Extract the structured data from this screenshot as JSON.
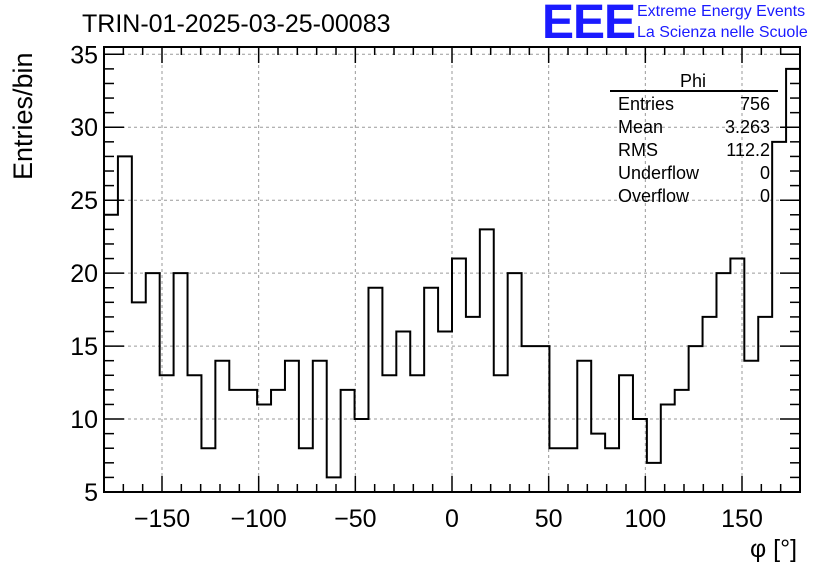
{
  "page": {
    "title": "TRIN-01-2025-03-25-00083",
    "logo": {
      "mark": "EEE",
      "line1": "Extreme Energy Events",
      "line2": "La Scienza nelle Scuole",
      "color": "#1a1aff"
    }
  },
  "stats": {
    "name": "Phi",
    "rows": [
      {
        "key": "Entries",
        "value": "756"
      },
      {
        "key": "Mean",
        "value": "3.263"
      },
      {
        "key": "RMS",
        "value": "112.2"
      },
      {
        "key": "Underflow",
        "value": "0"
      },
      {
        "key": "Overflow",
        "value": "0"
      }
    ]
  },
  "chart_data": {
    "type": "bar",
    "style": "step-histogram",
    "title": "TRIN-01-2025-03-25-00083",
    "xlabel": "φ [°]",
    "ylabel": "Entries/bin",
    "xlim": [
      -180,
      180
    ],
    "ylim": [
      5,
      35.5
    ],
    "bin_width": 7.2,
    "xticks": [
      -150,
      -100,
      -50,
      0,
      50,
      100,
      150
    ],
    "xtick_labels": [
      "−150",
      "−100",
      "−50",
      "0",
      "50",
      "100",
      "150"
    ],
    "yticks": [
      5,
      10,
      15,
      20,
      25,
      30,
      35
    ],
    "ytick_labels": [
      "5",
      "10",
      "15",
      "20",
      "25",
      "30",
      "35"
    ],
    "grid": true,
    "legend": "top-right",
    "values": [
      24,
      28,
      18,
      20,
      13,
      20,
      13,
      8,
      14,
      12,
      12,
      11,
      12,
      14,
      8,
      14,
      6,
      12,
      10,
      19,
      13,
      16,
      13,
      19,
      16,
      21,
      17,
      23,
      13,
      20,
      15,
      15,
      8,
      8,
      14,
      9,
      8,
      13,
      10,
      7,
      11,
      12,
      15,
      17,
      20,
      21,
      14,
      17,
      29,
      34
    ]
  }
}
